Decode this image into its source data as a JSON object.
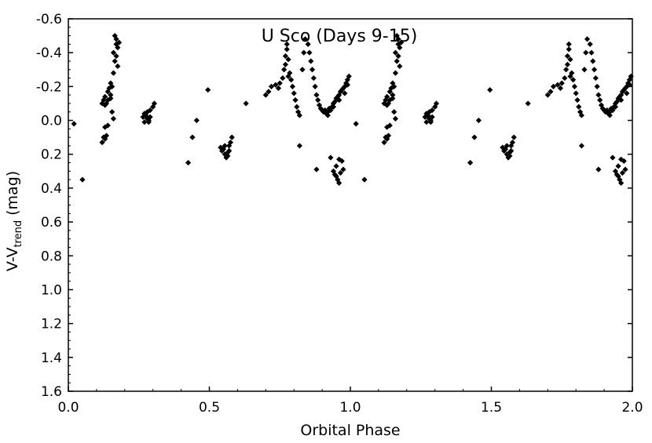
{
  "chart_data": {
    "type": "scatter",
    "title": "U Sco (Days 9-15)",
    "xlabel": "Orbital Phase",
    "ylabel_main": "V-V",
    "ylabel_sub": "trend",
    "ylabel_unit": " (mag)",
    "xlim": [
      0.0,
      2.0
    ],
    "ylim": [
      -0.6,
      1.6
    ],
    "y_inverted": true,
    "x_ticks": [
      "0.0",
      "0.5",
      "1.0",
      "1.5",
      "2.0"
    ],
    "y_ticks": [
      "-0.6",
      "-0.4",
      "-0.2",
      "0.0",
      "0.2",
      "0.4",
      "0.6",
      "0.8",
      "1.0",
      "1.2",
      "1.4",
      "1.6"
    ],
    "marker": "diamond",
    "marker_color": "#000000",
    "grid": false,
    "series": [
      {
        "values": [
          [
            0.02,
            0.02
          ],
          [
            0.05,
            0.35
          ],
          [
            0.12,
            0.13
          ],
          [
            0.125,
            0.1
          ],
          [
            0.13,
            0.11
          ],
          [
            0.135,
            0.09
          ],
          [
            0.13,
            0.04
          ],
          [
            0.14,
            0.03
          ],
          [
            0.12,
            -0.1
          ],
          [
            0.125,
            -0.12
          ],
          [
            0.13,
            -0.09
          ],
          [
            0.135,
            -0.1
          ],
          [
            0.13,
            -0.14
          ],
          [
            0.14,
            -0.12
          ],
          [
            0.14,
            -0.17
          ],
          [
            0.145,
            -0.19
          ],
          [
            0.15,
            -0.15
          ],
          [
            0.15,
            -0.22
          ],
          [
            0.155,
            -0.2
          ],
          [
            0.15,
            -0.13
          ],
          [
            0.155,
            -0.05
          ],
          [
            0.16,
            -0.01
          ],
          [
            0.16,
            -0.28
          ],
          [
            0.165,
            -0.35
          ],
          [
            0.16,
            -0.4
          ],
          [
            0.17,
            -0.45
          ],
          [
            0.17,
            -0.48
          ],
          [
            0.165,
            -0.5
          ],
          [
            0.175,
            -0.43
          ],
          [
            0.17,
            -0.38
          ],
          [
            0.18,
            -0.46
          ],
          [
            0.175,
            -0.32
          ],
          [
            0.265,
            -0.02
          ],
          [
            0.27,
            0.01
          ],
          [
            0.275,
            -0.03
          ],
          [
            0.28,
            -0.01
          ],
          [
            0.285,
            0.0
          ],
          [
            0.27,
            -0.04
          ],
          [
            0.29,
            -0.06
          ],
          [
            0.29,
            -0.02
          ],
          [
            0.285,
            0.01
          ],
          [
            0.3,
            -0.08
          ],
          [
            0.305,
            -0.1
          ],
          [
            0.28,
            -0.05
          ],
          [
            0.425,
            0.25
          ],
          [
            0.44,
            0.1
          ],
          [
            0.455,
            0.0
          ],
          [
            0.495,
            -0.18
          ],
          [
            0.54,
            0.16
          ],
          [
            0.545,
            0.18
          ],
          [
            0.55,
            0.17
          ],
          [
            0.555,
            0.2
          ],
          [
            0.56,
            0.22
          ],
          [
            0.565,
            0.19
          ],
          [
            0.57,
            0.15
          ],
          [
            0.575,
            0.13
          ],
          [
            0.57,
            0.18
          ],
          [
            0.58,
            0.1
          ],
          [
            0.555,
            0.15
          ],
          [
            0.565,
            0.21
          ],
          [
            0.63,
            -0.1
          ],
          [
            0.7,
            -0.15
          ],
          [
            0.71,
            -0.17
          ],
          [
            0.72,
            -0.2
          ],
          [
            0.735,
            -0.21
          ],
          [
            0.745,
            -0.19
          ],
          [
            0.75,
            -0.22
          ],
          [
            0.76,
            -0.25
          ],
          [
            0.765,
            -0.3
          ],
          [
            0.77,
            -0.33
          ],
          [
            0.77,
            -0.38
          ],
          [
            0.775,
            -0.42
          ],
          [
            0.775,
            -0.45
          ],
          [
            0.78,
            -0.36
          ],
          [
            0.785,
            -0.28
          ],
          [
            0.79,
            -0.24
          ],
          [
            0.795,
            -0.2
          ],
          [
            0.8,
            -0.16
          ],
          [
            0.805,
            -0.12
          ],
          [
            0.81,
            -0.08
          ],
          [
            0.815,
            -0.05
          ],
          [
            0.82,
            -0.03
          ],
          [
            0.82,
            0.15
          ],
          [
            0.78,
            -0.26
          ],
          [
            0.83,
            -0.3
          ],
          [
            0.835,
            -0.4
          ],
          [
            0.84,
            -0.48
          ],
          [
            0.85,
            -0.45
          ],
          [
            0.855,
            -0.4
          ],
          [
            0.86,
            -0.35
          ],
          [
            0.865,
            -0.3
          ],
          [
            0.87,
            -0.25
          ],
          [
            0.875,
            -0.2
          ],
          [
            0.88,
            -0.15
          ],
          [
            0.885,
            -0.12
          ],
          [
            0.89,
            -0.09
          ],
          [
            0.895,
            -0.07
          ],
          [
            0.9,
            -0.06
          ],
          [
            0.905,
            -0.05
          ],
          [
            0.91,
            -0.06
          ],
          [
            0.915,
            -0.04
          ],
          [
            0.92,
            -0.05
          ],
          [
            0.925,
            -0.07
          ],
          [
            0.93,
            -0.06
          ],
          [
            0.935,
            -0.08
          ],
          [
            0.94,
            -0.1
          ],
          [
            0.945,
            -0.11
          ],
          [
            0.95,
            -0.13
          ],
          [
            0.955,
            -0.14
          ],
          [
            0.96,
            -0.15
          ],
          [
            0.965,
            -0.17
          ],
          [
            0.97,
            -0.18
          ],
          [
            0.975,
            -0.19
          ],
          [
            0.98,
            -0.2
          ],
          [
            0.985,
            -0.22
          ],
          [
            0.99,
            -0.24
          ],
          [
            0.995,
            -0.26
          ],
          [
            0.99,
            -0.21
          ],
          [
            0.98,
            -0.16
          ],
          [
            0.96,
            -0.12
          ],
          [
            0.94,
            -0.08
          ],
          [
            0.92,
            -0.03
          ],
          [
            0.88,
            0.29
          ],
          [
            0.93,
            0.22
          ],
          [
            0.94,
            0.3
          ],
          [
            0.945,
            0.32
          ],
          [
            0.95,
            0.27
          ],
          [
            0.955,
            0.35
          ],
          [
            0.96,
            0.37
          ],
          [
            0.965,
            0.31
          ],
          [
            0.97,
            0.24
          ],
          [
            0.975,
            0.29
          ],
          [
            0.96,
            0.23
          ],
          [
            0.95,
            0.33
          ],
          [
            1.02,
            0.02
          ],
          [
            1.05,
            0.35
          ],
          [
            1.12,
            0.13
          ],
          [
            1.125,
            0.1
          ],
          [
            1.13,
            0.11
          ],
          [
            1.135,
            0.09
          ],
          [
            1.13,
            0.04
          ],
          [
            1.14,
            0.03
          ],
          [
            1.12,
            -0.1
          ],
          [
            1.125,
            -0.12
          ],
          [
            1.13,
            -0.09
          ],
          [
            1.135,
            -0.1
          ],
          [
            1.13,
            -0.14
          ],
          [
            1.14,
            -0.12
          ],
          [
            1.14,
            -0.17
          ],
          [
            1.145,
            -0.19
          ],
          [
            1.15,
            -0.15
          ],
          [
            1.15,
            -0.22
          ],
          [
            1.155,
            -0.2
          ],
          [
            1.15,
            -0.13
          ],
          [
            1.155,
            -0.05
          ],
          [
            1.16,
            -0.01
          ],
          [
            1.16,
            -0.28
          ],
          [
            1.165,
            -0.35
          ],
          [
            1.16,
            -0.4
          ],
          [
            1.17,
            -0.45
          ],
          [
            1.17,
            -0.48
          ],
          [
            1.165,
            -0.5
          ],
          [
            1.175,
            -0.43
          ],
          [
            1.17,
            -0.38
          ],
          [
            1.18,
            -0.46
          ],
          [
            1.175,
            -0.32
          ],
          [
            1.265,
            -0.02
          ],
          [
            1.27,
            0.01
          ],
          [
            1.275,
            -0.03
          ],
          [
            1.28,
            -0.01
          ],
          [
            1.285,
            0.0
          ],
          [
            1.27,
            -0.04
          ],
          [
            1.29,
            -0.06
          ],
          [
            1.29,
            -0.02
          ],
          [
            1.285,
            0.01
          ],
          [
            1.3,
            -0.08
          ],
          [
            1.305,
            -0.1
          ],
          [
            1.28,
            -0.05
          ],
          [
            1.425,
            0.25
          ],
          [
            1.44,
            0.1
          ],
          [
            1.455,
            0.0
          ],
          [
            1.495,
            -0.18
          ],
          [
            1.54,
            0.16
          ],
          [
            1.545,
            0.18
          ],
          [
            1.55,
            0.17
          ],
          [
            1.555,
            0.2
          ],
          [
            1.56,
            0.22
          ],
          [
            1.565,
            0.19
          ],
          [
            1.57,
            0.15
          ],
          [
            1.575,
            0.13
          ],
          [
            1.57,
            0.18
          ],
          [
            1.58,
            0.1
          ],
          [
            1.555,
            0.15
          ],
          [
            1.565,
            0.21
          ],
          [
            1.63,
            -0.1
          ],
          [
            1.7,
            -0.15
          ],
          [
            1.71,
            -0.17
          ],
          [
            1.72,
            -0.2
          ],
          [
            1.735,
            -0.21
          ],
          [
            1.745,
            -0.19
          ],
          [
            1.75,
            -0.22
          ],
          [
            1.76,
            -0.25
          ],
          [
            1.765,
            -0.3
          ],
          [
            1.77,
            -0.33
          ],
          [
            1.77,
            -0.38
          ],
          [
            1.775,
            -0.42
          ],
          [
            1.775,
            -0.45
          ],
          [
            1.78,
            -0.36
          ],
          [
            1.785,
            -0.28
          ],
          [
            1.79,
            -0.24
          ],
          [
            1.795,
            -0.2
          ],
          [
            1.8,
            -0.16
          ],
          [
            1.805,
            -0.12
          ],
          [
            1.81,
            -0.08
          ],
          [
            1.815,
            -0.05
          ],
          [
            1.82,
            -0.03
          ],
          [
            1.82,
            0.15
          ],
          [
            1.78,
            -0.26
          ],
          [
            1.83,
            -0.3
          ],
          [
            1.835,
            -0.4
          ],
          [
            1.84,
            -0.48
          ],
          [
            1.85,
            -0.45
          ],
          [
            1.855,
            -0.4
          ],
          [
            1.86,
            -0.35
          ],
          [
            1.865,
            -0.3
          ],
          [
            1.87,
            -0.25
          ],
          [
            1.875,
            -0.2
          ],
          [
            1.88,
            -0.15
          ],
          [
            1.885,
            -0.12
          ],
          [
            1.89,
            -0.09
          ],
          [
            1.895,
            -0.07
          ],
          [
            1.9,
            -0.06
          ],
          [
            1.905,
            -0.05
          ],
          [
            1.91,
            -0.06
          ],
          [
            1.915,
            -0.04
          ],
          [
            1.92,
            -0.05
          ],
          [
            1.925,
            -0.07
          ],
          [
            1.93,
            -0.06
          ],
          [
            1.935,
            -0.08
          ],
          [
            1.94,
            -0.1
          ],
          [
            1.945,
            -0.11
          ],
          [
            1.95,
            -0.13
          ],
          [
            1.955,
            -0.14
          ],
          [
            1.96,
            -0.15
          ],
          [
            1.965,
            -0.17
          ],
          [
            1.97,
            -0.18
          ],
          [
            1.975,
            -0.19
          ],
          [
            1.98,
            -0.2
          ],
          [
            1.985,
            -0.22
          ],
          [
            1.99,
            -0.24
          ],
          [
            1.995,
            -0.26
          ],
          [
            1.99,
            -0.21
          ],
          [
            1.98,
            -0.16
          ],
          [
            1.96,
            -0.12
          ],
          [
            1.94,
            -0.08
          ],
          [
            1.92,
            -0.03
          ],
          [
            1.88,
            0.29
          ],
          [
            1.93,
            0.22
          ],
          [
            1.94,
            0.3
          ],
          [
            1.945,
            0.32
          ],
          [
            1.95,
            0.27
          ],
          [
            1.955,
            0.35
          ],
          [
            1.96,
            0.37
          ],
          [
            1.965,
            0.31
          ],
          [
            1.97,
            0.24
          ],
          [
            1.975,
            0.29
          ],
          [
            1.96,
            0.23
          ],
          [
            1.95,
            0.33
          ]
        ]
      }
    ]
  }
}
